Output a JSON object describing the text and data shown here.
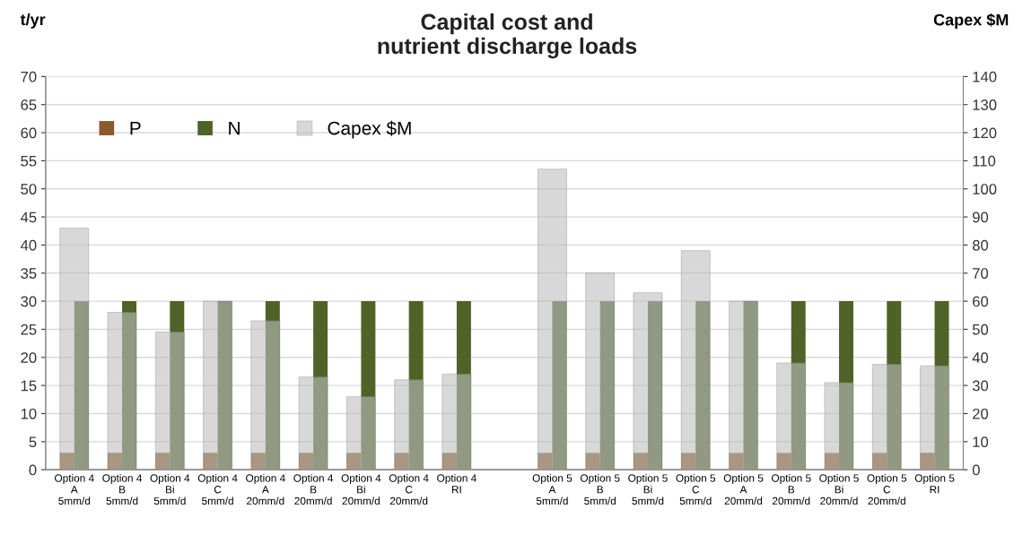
{
  "chart_data": {
    "type": "bar",
    "title": "Capital cost and\nnutrient discharge loads",
    "ylabel": "t/yr",
    "y2label": "Capex $M",
    "categories": [
      "Option 4\nA\n5mm/d",
      "Option 4\nB\n5mm/d",
      "Option 4\nBi\n5mm/d",
      "Option 4\nC\n5mm/d",
      "Option 4\nA\n20mm/d",
      "Option 4\nB\n20mm/d",
      "Option 4\nBi\n20mm/d",
      "Option 4\nC\n20mm/d",
      "Option 4\nRI",
      null,
      "Option 5\nA\n5mm/d",
      "Option 5\nB\n5mm/d",
      "Option 5\nBi\n5mm/d",
      "Option 5\nC\n5mm/d",
      "Option 5\nA\n20mm/d",
      "Option 5\nB\n20mm/d",
      "Option 5\nBi\n20mm/d",
      "Option 5\nC\n20mm/d",
      "Option 5\nRI"
    ],
    "series": [
      {
        "name": "P",
        "color": "#8b5a2b",
        "values": [
          3,
          3,
          3,
          3,
          3,
          3,
          3,
          3,
          3,
          null,
          3,
          3,
          3,
          3,
          3,
          3,
          3,
          3,
          3
        ]
      },
      {
        "name": "N",
        "color": "#4f6228",
        "values": [
          30,
          30,
          30,
          30,
          30,
          30,
          30,
          30,
          30,
          null,
          30,
          30,
          30,
          30,
          30,
          30,
          30,
          30,
          30
        ]
      },
      {
        "name": "Capex $M",
        "color": "#bfbfbf",
        "axis": "y2",
        "values": [
          86,
          56,
          49,
          60,
          53,
          33,
          26,
          32,
          34,
          null,
          107,
          70,
          63,
          78,
          60,
          38,
          31,
          37.5,
          37
        ]
      }
    ],
    "ylim": [
      0,
      70
    ],
    "yticks": [
      0,
      5,
      10,
      15,
      20,
      25,
      30,
      35,
      40,
      45,
      50,
      55,
      60,
      65,
      70
    ],
    "y2lim": [
      0,
      140
    ],
    "y2ticks": [
      0,
      10,
      20,
      30,
      40,
      50,
      60,
      70,
      80,
      90,
      100,
      110,
      120,
      130,
      140
    ],
    "grid": "y",
    "legend": "top left"
  }
}
